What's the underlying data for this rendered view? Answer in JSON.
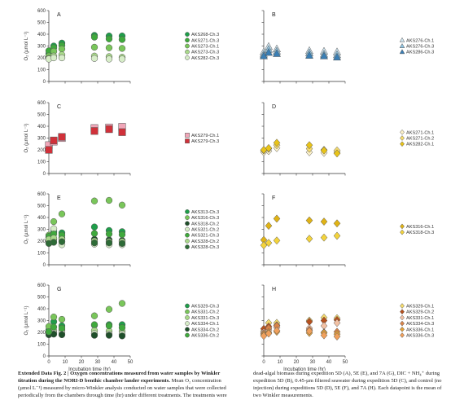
{
  "chart_data": [
    {
      "type": "scatter",
      "panel": "A",
      "ylabel": "O₂ (µmol L⁻¹)",
      "ylim": [
        0,
        600
      ],
      "xlim": [
        0,
        50
      ],
      "yticks": [
        "0",
        "100",
        "200",
        "300",
        "400",
        "500",
        "600"
      ],
      "xticks": [],
      "series": [
        {
          "name": "AKS268-Ch.3",
          "color": "#1f9e4a",
          "marker": "circle",
          "x": [
            0,
            3,
            8,
            28,
            37,
            45
          ],
          "y": [
            235,
            300,
            325,
            390,
            385,
            385
          ]
        },
        {
          "name": "AKS271-Ch.3",
          "color": "#3fa93c",
          "marker": "circle",
          "x": [
            0,
            3,
            8,
            28,
            37,
            45
          ],
          "y": [
            260,
            285,
            305,
            375,
            360,
            355
          ]
        },
        {
          "name": "AKS273-Ch.1",
          "color": "#79c65a",
          "marker": "circle",
          "x": [
            0,
            3,
            8,
            28,
            37,
            45
          ],
          "y": [
            215,
            255,
            275,
            290,
            285,
            280
          ]
        },
        {
          "name": "AKS273-Ch.3",
          "color": "#a9d98a",
          "marker": "circle",
          "x": [
            0,
            3,
            8,
            28,
            37,
            45
          ],
          "y": [
            195,
            215,
            225,
            215,
            210,
            205
          ]
        },
        {
          "name": "AKS282-Ch.3",
          "color": "#d7edc8",
          "marker": "circle",
          "x": [
            0,
            3,
            8,
            28,
            37,
            45
          ],
          "y": [
            190,
            200,
            200,
            195,
            190,
            190
          ]
        }
      ]
    },
    {
      "type": "scatter",
      "panel": "B",
      "ylim": [
        0,
        600
      ],
      "xlim": [
        0,
        50
      ],
      "yticks": [],
      "xticks": [],
      "series": [
        {
          "name": "AKS276-Ch.1",
          "color": "#cfe6f2",
          "marker": "triangle",
          "x": [
            0,
            3,
            8,
            28,
            37,
            45
          ],
          "y": [
            250,
            295,
            275,
            260,
            255,
            250
          ]
        },
        {
          "name": "AKS276-Ch.3",
          "color": "#8fc3e0",
          "marker": "triangle",
          "x": [
            0,
            3,
            8,
            28,
            37,
            45
          ],
          "y": [
            230,
            270,
            255,
            240,
            230,
            225
          ]
        },
        {
          "name": "AKS286-Ch.3",
          "color": "#3a7fb5",
          "marker": "triangle",
          "x": [
            0,
            3,
            8,
            28,
            37,
            45
          ],
          "y": [
            215,
            245,
            235,
            220,
            215,
            205
          ]
        }
      ]
    },
    {
      "type": "scatter",
      "panel": "C",
      "ylabel": "O₂ (µmol L⁻¹)",
      "ylim": [
        0,
        600
      ],
      "xlim": [
        0,
        50
      ],
      "yticks": [
        "0",
        "100",
        "200",
        "300",
        "400",
        "500",
        "600"
      ],
      "xticks": [],
      "series": [
        {
          "name": "AKS279-Ch.1",
          "color": "#f0a6b8",
          "marker": "square",
          "x": [
            0,
            3,
            8,
            28,
            37,
            45
          ],
          "y": [
            240,
            270,
            300,
            385,
            390,
            395
          ]
        },
        {
          "name": "AKS279-Ch.3",
          "color": "#d0313a",
          "marker": "square",
          "x": [
            0,
            3,
            8,
            28,
            37,
            45
          ],
          "y": [
            200,
            280,
            310,
            360,
            375,
            350
          ]
        }
      ]
    },
    {
      "type": "scatter",
      "panel": "D",
      "ylim": [
        0,
        600
      ],
      "xlim": [
        0,
        50
      ],
      "yticks": [],
      "xticks": [],
      "series": [
        {
          "name": "AKS271-Ch.1",
          "color": "#fbf0c8",
          "marker": "diamond",
          "x": [
            0,
            3,
            8,
            28,
            37,
            45
          ],
          "y": [
            180,
            190,
            215,
            180,
            175,
            180
          ]
        },
        {
          "name": "AKS271-Ch.2",
          "color": "#f6dc6e",
          "marker": "diamond",
          "x": [
            0,
            3,
            8,
            28,
            37,
            45
          ],
          "y": [
            195,
            210,
            240,
            210,
            200,
            195
          ]
        },
        {
          "name": "AKS282-Ch.1",
          "color": "#e8c319",
          "marker": "diamond",
          "x": [
            0,
            3,
            8,
            28,
            37,
            45
          ],
          "y": [
            200,
            215,
            260,
            240,
            195,
            170
          ]
        }
      ]
    },
    {
      "type": "scatter",
      "panel": "E",
      "ylabel": "O₂ (µmol L⁻¹)",
      "ylim": [
        0,
        600
      ],
      "xlim": [
        0,
        50
      ],
      "yticks": [
        "0",
        "100",
        "200",
        "300",
        "400",
        "500",
        "600"
      ],
      "xticks": [],
      "series": [
        {
          "name": "AKS313-Ch.3",
          "color": "#1f9e4a",
          "marker": "circle",
          "x": [
            0,
            3,
            8,
            28,
            37,
            45
          ],
          "y": [
            230,
            280,
            270,
            320,
            290,
            280
          ]
        },
        {
          "name": "AKS316-Ch.3",
          "color": "#79c65a",
          "marker": "circle",
          "x": [
            0,
            3,
            8,
            28,
            37,
            45
          ],
          "y": [
            250,
            365,
            430,
            540,
            545,
            505
          ]
        },
        {
          "name": "AKS318-Ch.2",
          "color": "#1f4f2a",
          "marker": "circle",
          "x": [
            0,
            3,
            8,
            28,
            37,
            45
          ],
          "y": [
            200,
            215,
            225,
            215,
            210,
            205
          ]
        },
        {
          "name": "AKS321-Ch.2",
          "color": "#d7edc8",
          "marker": "circle",
          "x": [
            0,
            3,
            8,
            28,
            37,
            45
          ],
          "y": [
            185,
            305,
            170,
            175,
            170,
            170
          ]
        },
        {
          "name": "AKS321-Ch.3",
          "color": "#3fa93c",
          "marker": "circle",
          "x": [
            0,
            3,
            8,
            28,
            37,
            45
          ],
          "y": [
            240,
            260,
            250,
            265,
            260,
            255
          ]
        },
        {
          "name": "AKS328-Ch.2",
          "color": "#a9d98a",
          "marker": "circle",
          "x": [
            0,
            3,
            8,
            28,
            37,
            45
          ],
          "y": [
            215,
            225,
            215,
            200,
            195,
            195
          ]
        },
        {
          "name": "AKS328-Ch.3",
          "color": "#2e6b37",
          "marker": "circle",
          "x": [
            0,
            3,
            8,
            28,
            37,
            45
          ],
          "y": [
            180,
            190,
            195,
            185,
            185,
            180
          ]
        }
      ]
    },
    {
      "type": "scatter",
      "panel": "F",
      "ylim": [
        0,
        600
      ],
      "xlim": [
        0,
        50
      ],
      "yticks": [],
      "xticks": [],
      "series": [
        {
          "name": "AKS316-Ch.1",
          "color": "#e0b315",
          "marker": "diamond",
          "x": [
            0,
            3,
            8,
            28,
            37,
            45
          ],
          "y": [
            210,
            330,
            390,
            375,
            365,
            350
          ]
        },
        {
          "name": "AKS318-Ch.3",
          "color": "#f3d33c",
          "marker": "diamond",
          "x": [
            0,
            3,
            8,
            28,
            37,
            45
          ],
          "y": [
            165,
            185,
            205,
            220,
            230,
            245
          ]
        }
      ]
    },
    {
      "type": "scatter",
      "panel": "G",
      "ylabel": "O₂ (µmol L⁻¹)",
      "ylim": [
        0,
        600
      ],
      "xlim": [
        0,
        50
      ],
      "yticks": [
        "0",
        "100",
        "200",
        "300",
        "400",
        "500",
        "600"
      ],
      "xticks": [
        "0",
        "10",
        "20",
        "30",
        "40",
        "50"
      ],
      "xlabel": "Incubation time (hr)",
      "series": [
        {
          "name": "AKS329-Ch.3",
          "color": "#1f9e4a",
          "marker": "circle",
          "x": [
            0,
            3,
            8,
            28,
            37,
            45
          ],
          "y": [
            220,
            290,
            255,
            260,
            265,
            265
          ]
        },
        {
          "name": "AKS331-Ch.2",
          "color": "#79c65a",
          "marker": "circle",
          "x": [
            0,
            3,
            8,
            28,
            37,
            45
          ],
          "y": [
            250,
            330,
            310,
            340,
            395,
            445
          ]
        },
        {
          "name": "AKS331-Ch.3",
          "color": "#a9d98a",
          "marker": "circle",
          "x": [
            0,
            3,
            8,
            28,
            37,
            45
          ],
          "y": [
            200,
            215,
            220,
            215,
            210,
            210
          ]
        },
        {
          "name": "AKS334-Ch.1",
          "color": "#d7edc8",
          "marker": "circle",
          "x": [
            0,
            3,
            8,
            28,
            37,
            45
          ],
          "y": [
            190,
            195,
            200,
            190,
            185,
            185
          ]
        },
        {
          "name": "AKS334-Ch.2",
          "color": "#1f4f2a",
          "marker": "circle",
          "x": [
            0,
            3,
            8,
            28,
            37,
            45
          ],
          "y": [
            180,
            185,
            180,
            175,
            175,
            170
          ]
        },
        {
          "name": "AKS336-Ch.2",
          "color": "#3fa93c",
          "marker": "circle",
          "x": [
            0,
            3,
            8,
            28,
            37,
            45
          ],
          "y": [
            205,
            245,
            235,
            265,
            255,
            240
          ]
        }
      ]
    },
    {
      "type": "scatter",
      "panel": "H",
      "ylim": [
        0,
        600
      ],
      "xlim": [
        0,
        50
      ],
      "yticks": [],
      "xticks": [
        "0",
        "10",
        "20",
        "30",
        "40",
        "50"
      ],
      "xlabel": "Incubation time (hr)",
      "series": [
        {
          "name": "AKS329-Ch.1",
          "color": "#f6dc6e",
          "marker": "diamond",
          "x": [
            0,
            3,
            8,
            28,
            37,
            45
          ],
          "y": [
            210,
            280,
            280,
            300,
            325,
            320
          ]
        },
        {
          "name": "AKS329-Ch.2",
          "color": "#b6511e",
          "marker": "diamond",
          "x": [
            0,
            3,
            8,
            28,
            37,
            45
          ],
          "y": [
            230,
            250,
            260,
            290,
            300,
            305
          ]
        },
        {
          "name": "AKS331-Ch.1",
          "color": "#f2c1a4",
          "marker": "diamond",
          "x": [
            0,
            3,
            8,
            28,
            37,
            45
          ],
          "y": [
            200,
            220,
            240,
            235,
            255,
            280
          ]
        },
        {
          "name": "AKS334-Ch.3",
          "color": "#d9844a",
          "marker": "diamond",
          "x": [
            0,
            3,
            8,
            28,
            37,
            45
          ],
          "y": [
            190,
            235,
            255,
            220,
            200,
            205
          ]
        },
        {
          "name": "AKS336-Ch.1",
          "color": "#e3a23a",
          "marker": "diamond",
          "x": [
            0,
            3,
            8,
            28,
            37,
            45
          ],
          "y": [
            180,
            200,
            205,
            195,
            195,
            185
          ]
        },
        {
          "name": "AKS336-Ch.3",
          "color": "#f0a05c",
          "marker": "diamond",
          "x": [
            0,
            3,
            8,
            28,
            37,
            45
          ],
          "y": [
            170,
            190,
            215,
            210,
            175,
            165
          ]
        }
      ]
    }
  ],
  "caption": {
    "title": "Extended Data Fig. 2 | Oxygen concentrations measured from water samples by Winkler titration during the NORI-D benthic chamber lander experiments.",
    "left_body": "Mean O₂ concentration (µmol L⁻¹) measured by micro-Winkler analysis conducted on water samples that were collected periodically from the chambers through time (hr) under different treatments. The treatments were",
    "right_body": "dead-algal biomass during expedition 5D (A), 5E (E), and 7A (G), DIC + NH₄⁺ during expedition 5D (B), 0.45-µm filtered seawater during expedition 5D (C), and control (no injection) during expeditions 5D (D), 5E (F), and 7A (H). Each datapoint is the mean of two Winkler measurements."
  }
}
